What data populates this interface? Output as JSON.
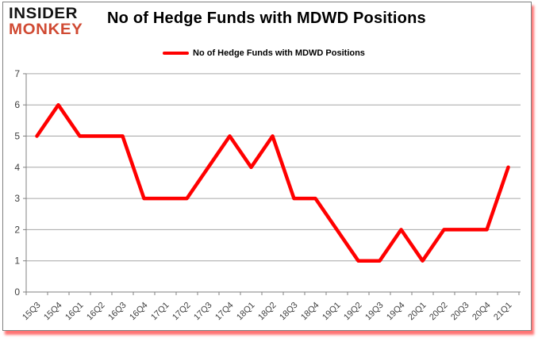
{
  "header": {
    "logo_line1": "INSIDER",
    "logo_line2": "MONKEY",
    "title": "No of Hedge Funds with MDWD Positions"
  },
  "legend": {
    "label": "No of Hedge Funds with MDWD Positions"
  },
  "colors": {
    "line": "#ff0000",
    "logo_accent": "#d04a33",
    "grid": "#a6a6a6",
    "axis": "#808080",
    "frame_border": "#7f7f7f",
    "shadow": "#ff0000",
    "tick_text": "#3f3f3f",
    "title_text": "#000000"
  },
  "chart_data": {
    "type": "line",
    "title": "No of Hedge Funds with MDWD Positions",
    "xlabel": "",
    "ylabel": "",
    "categories": [
      "15Q3",
      "15Q4",
      "16Q1",
      "16Q2",
      "16Q3",
      "16Q4",
      "17Q1",
      "17Q2",
      "17Q3",
      "17Q4",
      "18Q1",
      "18Q2",
      "18Q3",
      "18Q4",
      "19Q1",
      "19Q2",
      "19Q3",
      "19Q4",
      "20Q1",
      "20Q2",
      "20Q3",
      "20Q4",
      "21Q1"
    ],
    "series": [
      {
        "name": "No of Hedge Funds with MDWD Positions",
        "color": "#ff0000",
        "values": [
          5,
          6,
          5,
          5,
          5,
          3,
          3,
          3,
          4,
          5,
          4,
          5,
          3,
          3,
          2,
          1,
          1,
          2,
          1,
          2,
          2,
          2,
          4
        ]
      }
    ],
    "ylim": [
      0,
      7
    ],
    "yticks": [
      0,
      1,
      2,
      3,
      4,
      5,
      6,
      7
    ],
    "grid": true,
    "legend_position": "top"
  }
}
